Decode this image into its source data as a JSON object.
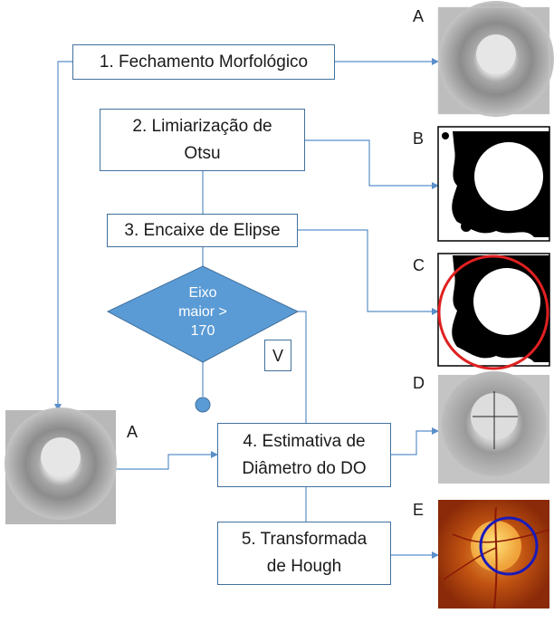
{
  "steps": {
    "step1": "1. Fechamento Morfológico",
    "step2": "2. Limiarização de\nOtsu",
    "step3": "3. Encaixe de Elipse",
    "decision": "Eixo\nmaior >\n170",
    "step4": "4. Estimativa de\nDiâmetro do DO",
    "step5": "5. Transformada\nde Hough",
    "branch_true": "V"
  },
  "panel_labels": {
    "a_top": "A",
    "b": "B",
    "c": "C",
    "d": "D",
    "e": "E",
    "a_left": "A"
  },
  "colors": {
    "connector": "#5b8fc9",
    "decision_fill": "#5b9bd5",
    "box_border": "#41719c",
    "ellipse": "#e02020",
    "circle": "#1a1ab8"
  }
}
